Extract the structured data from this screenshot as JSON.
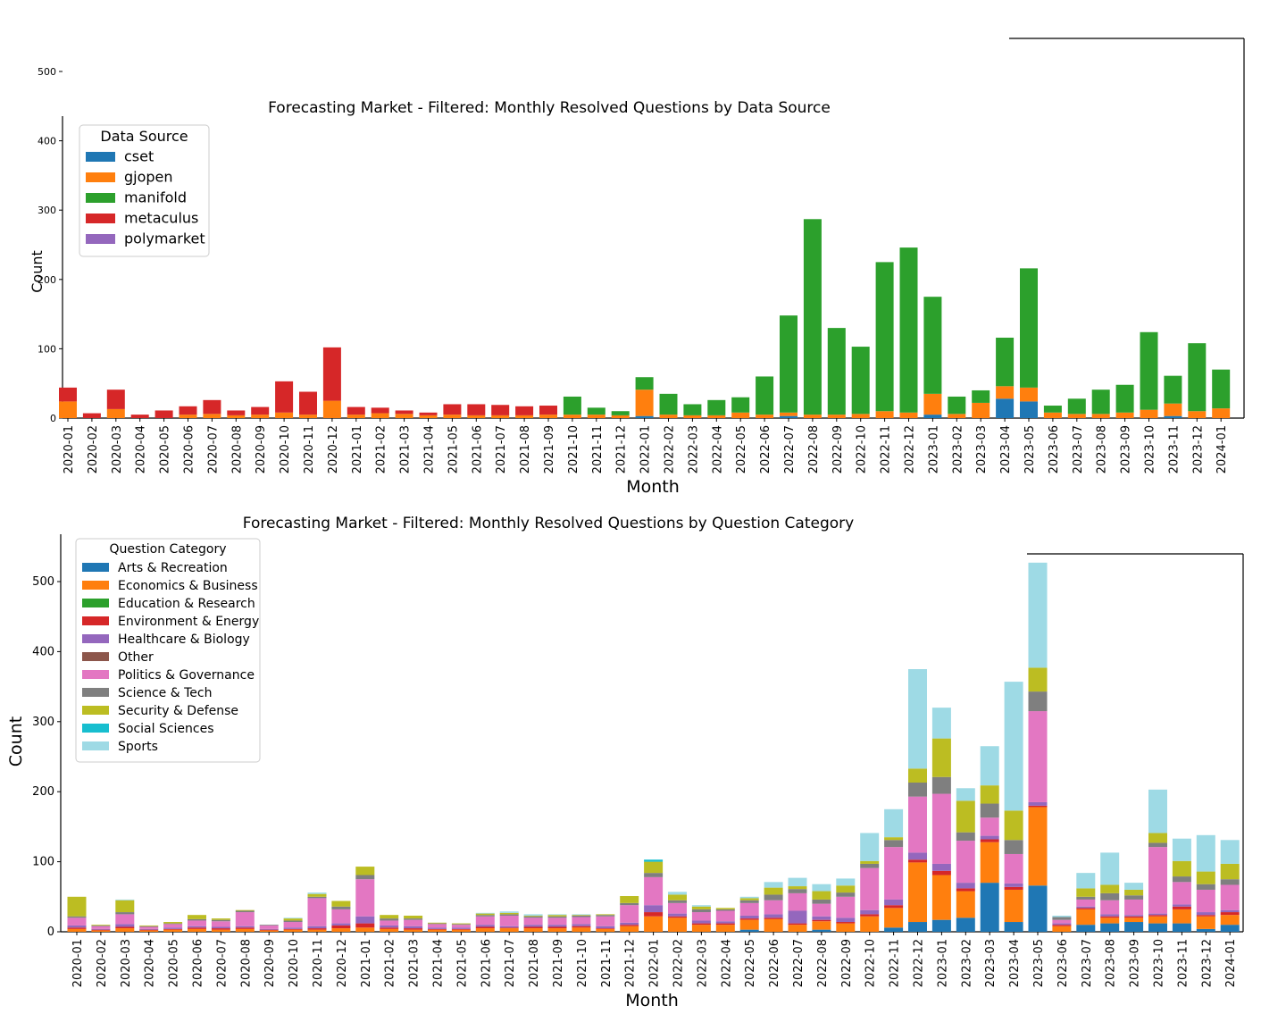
{
  "colors": {
    "source": {
      "cset": "#1f77b4",
      "gjopen": "#ff7f0e",
      "manifold": "#2ca02c",
      "metaculus": "#d62728",
      "polymarket": "#9467bd"
    },
    "category": {
      "Arts & Recreation": "#1f77b4",
      "Economics & Business": "#ff7f0e",
      "Education & Research": "#2ca02c",
      "Environment & Energy": "#d62728",
      "Healthcare & Biology": "#9467bd",
      "Other": "#8c564b",
      "Politics & Governance": "#e377c2",
      "Science & Tech": "#7f7f7f",
      "Security & Defense": "#bcbd22",
      "Social Sciences": "#17becf",
      "Sports": "#9edae5"
    }
  },
  "chart_data": [
    {
      "type": "bar",
      "stacked": true,
      "title": "Forecasting Market - Filtered: Monthly Resolved Questions by Data Source",
      "xlabel": "Month",
      "ylabel": "Count",
      "ylim": [
        0,
        540
      ],
      "yticks": [
        0,
        100,
        200,
        300,
        400,
        500
      ],
      "legend_title": "Data Source",
      "legend_position": "upper-left",
      "categories": [
        "2020-01",
        "2020-02",
        "2020-03",
        "2020-04",
        "2020-05",
        "2020-06",
        "2020-07",
        "2020-08",
        "2020-09",
        "2020-10",
        "2020-11",
        "2020-12",
        "2021-01",
        "2021-02",
        "2021-03",
        "2021-04",
        "2021-05",
        "2021-06",
        "2021-07",
        "2021-08",
        "2021-09",
        "2021-10",
        "2021-11",
        "2021-12",
        "2022-01",
        "2022-02",
        "2022-03",
        "2022-04",
        "2022-05",
        "2022-06",
        "2022-07",
        "2022-08",
        "2022-09",
        "2022-10",
        "2022-11",
        "2022-12",
        "2023-01",
        "2023-02",
        "2023-03",
        "2023-04",
        "2023-05",
        "2023-06",
        "2023-07",
        "2023-08",
        "2023-09",
        "2023-10",
        "2023-11",
        "2023-12",
        "2024-01"
      ],
      "series": [
        {
          "name": "cset",
          "values": [
            0,
            0,
            0,
            0,
            0,
            0,
            0,
            0,
            0,
            0,
            0,
            0,
            0,
            0,
            0,
            0,
            0,
            0,
            0,
            0,
            0,
            0,
            0,
            0,
            3,
            0,
            0,
            0,
            0,
            0,
            3,
            0,
            0,
            0,
            0,
            0,
            5,
            0,
            0,
            28,
            24,
            0,
            0,
            0,
            0,
            0,
            3,
            0,
            0
          ]
        },
        {
          "name": "gjopen",
          "values": [
            24,
            0,
            13,
            0,
            0,
            5,
            6,
            4,
            5,
            8,
            5,
            25,
            5,
            7,
            6,
            4,
            5,
            4,
            4,
            4,
            5,
            5,
            5,
            4,
            38,
            5,
            4,
            4,
            8,
            5,
            5,
            5,
            5,
            6,
            10,
            8,
            30,
            6,
            22,
            18,
            20,
            8,
            6,
            6,
            8,
            12,
            18,
            10,
            14
          ]
        },
        {
          "name": "manifold",
          "values": [
            0,
            0,
            0,
            0,
            0,
            0,
            0,
            0,
            0,
            0,
            0,
            0,
            0,
            0,
            0,
            0,
            0,
            0,
            0,
            0,
            0,
            26,
            10,
            6,
            18,
            30,
            16,
            22,
            22,
            55,
            140,
            282,
            125,
            97,
            215,
            238,
            140,
            25,
            18,
            70,
            172,
            10,
            22,
            35,
            40,
            112,
            40,
            98,
            56
          ]
        },
        {
          "name": "metaculus",
          "values": [
            20,
            7,
            28,
            5,
            11,
            12,
            20,
            7,
            11,
            45,
            33,
            77,
            11,
            8,
            5,
            4,
            15,
            16,
            15,
            13,
            13,
            0,
            0,
            0,
            0,
            0,
            0,
            0,
            0,
            0,
            0,
            0,
            0,
            0,
            0,
            0,
            0,
            0,
            0,
            0,
            0,
            0,
            0,
            0,
            0,
            0,
            0,
            0,
            0
          ]
        },
        {
          "name": "polymarket",
          "values": [
            0,
            0,
            0,
            0,
            0,
            0,
            0,
            0,
            0,
            0,
            0,
            0,
            0,
            0,
            0,
            0,
            0,
            0,
            0,
            0,
            0,
            0,
            0,
            0,
            0,
            0,
            0,
            0,
            0,
            0,
            0,
            0,
            0,
            0,
            0,
            0,
            0,
            0,
            0,
            0,
            0,
            0,
            0,
            0,
            0,
            0,
            0,
            0,
            0
          ]
        }
      ]
    },
    {
      "type": "bar",
      "stacked": true,
      "title": "Forecasting Market - Filtered: Monthly Resolved Questions by Question Category",
      "xlabel": "Month",
      "ylabel": "Count",
      "ylim": [
        0,
        560
      ],
      "yticks": [
        0,
        100,
        200,
        300,
        400,
        500
      ],
      "legend_title": "Question Category",
      "legend_position": "upper-left",
      "categories": [
        "2020-01",
        "2020-02",
        "2020-03",
        "2020-04",
        "2020-05",
        "2020-06",
        "2020-07",
        "2020-08",
        "2020-09",
        "2020-10",
        "2020-11",
        "2020-12",
        "2021-01",
        "2021-02",
        "2021-03",
        "2021-04",
        "2021-05",
        "2021-06",
        "2021-07",
        "2021-08",
        "2021-09",
        "2021-10",
        "2021-11",
        "2021-12",
        "2022-01",
        "2022-02",
        "2022-03",
        "2022-04",
        "2022-05",
        "2022-06",
        "2022-07",
        "2022-08",
        "2022-09",
        "2022-10",
        "2022-11",
        "2022-12",
        "2023-01",
        "2023-02",
        "2023-03",
        "2023-04",
        "2023-05",
        "2023-06",
        "2023-07",
        "2023-08",
        "2023-09",
        "2023-10",
        "2023-11",
        "2023-12",
        "2024-01"
      ],
      "series": [
        {
          "name": "Arts & Recreation",
          "values": [
            0,
            0,
            0,
            0,
            0,
            0,
            0,
            0,
            0,
            0,
            0,
            0,
            0,
            0,
            0,
            0,
            0,
            0,
            0,
            0,
            0,
            0,
            0,
            0,
            0,
            0,
            0,
            0,
            3,
            0,
            0,
            3,
            0,
            0,
            6,
            14,
            17,
            20,
            70,
            14,
            66,
            0,
            10,
            12,
            14,
            12,
            12,
            4,
            10
          ]
        },
        {
          "name": "Economics & Business",
          "values": [
            4,
            2,
            5,
            2,
            3,
            4,
            3,
            4,
            2,
            3,
            3,
            5,
            6,
            4,
            3,
            3,
            3,
            5,
            5,
            5,
            5,
            6,
            4,
            8,
            22,
            20,
            10,
            10,
            14,
            18,
            10,
            12,
            12,
            22,
            28,
            85,
            64,
            38,
            58,
            46,
            112,
            8,
            22,
            8,
            6,
            10,
            20,
            18,
            14
          ]
        },
        {
          "name": "Education & Research",
          "values": [
            0,
            0,
            0,
            0,
            0,
            0,
            0,
            0,
            0,
            0,
            0,
            0,
            0,
            0,
            0,
            0,
            0,
            0,
            0,
            0,
            0,
            0,
            0,
            0,
            0,
            0,
            0,
            0,
            0,
            0,
            0,
            0,
            0,
            0,
            0,
            0,
            0,
            0,
            0,
            0,
            0,
            0,
            0,
            0,
            0,
            0,
            0,
            0,
            0
          ]
        },
        {
          "name": "Environment & Energy",
          "values": [
            2,
            1,
            2,
            1,
            1,
            2,
            2,
            2,
            1,
            1,
            2,
            4,
            6,
            2,
            2,
            1,
            1,
            2,
            1,
            2,
            2,
            2,
            1,
            2,
            6,
            2,
            2,
            2,
            2,
            2,
            2,
            2,
            2,
            3,
            4,
            4,
            6,
            4,
            4,
            4,
            2,
            2,
            2,
            2,
            2,
            2,
            4,
            2,
            4
          ]
        },
        {
          "name": "Healthcare & Biology",
          "values": [
            3,
            1,
            4,
            1,
            2,
            2,
            2,
            2,
            1,
            2,
            3,
            3,
            10,
            3,
            3,
            2,
            2,
            3,
            2,
            3,
            3,
            3,
            3,
            3,
            10,
            4,
            4,
            3,
            4,
            5,
            18,
            5,
            6,
            6,
            8,
            10,
            10,
            8,
            5,
            5,
            5,
            2,
            2,
            3,
            2,
            2,
            3,
            4,
            3
          ]
        },
        {
          "name": "Other",
          "values": [
            0,
            0,
            0,
            0,
            0,
            0,
            0,
            0,
            0,
            0,
            0,
            0,
            0,
            0,
            0,
            0,
            0,
            0,
            0,
            0,
            0,
            0,
            0,
            0,
            0,
            0,
            0,
            0,
            0,
            0,
            0,
            0,
            0,
            0,
            0,
            0,
            0,
            0,
            0,
            0,
            0,
            0,
            0,
            0,
            0,
            0,
            0,
            0,
            0
          ]
        },
        {
          "name": "Politics & Governance",
          "values": [
            11,
            4,
            14,
            3,
            5,
            8,
            8,
            20,
            5,
            8,
            40,
            20,
            53,
            7,
            9,
            5,
            4,
            12,
            15,
            10,
            10,
            10,
            14,
            25,
            40,
            15,
            12,
            15,
            18,
            20,
            25,
            18,
            30,
            60,
            75,
            80,
            100,
            60,
            26,
            42,
            130,
            5,
            10,
            20,
            22,
            95,
            32,
            32,
            36
          ]
        },
        {
          "name": "Science & Tech",
          "values": [
            2,
            1,
            3,
            1,
            1,
            2,
            2,
            2,
            1,
            2,
            2,
            4,
            6,
            3,
            2,
            1,
            1,
            2,
            2,
            2,
            2,
            2,
            2,
            3,
            6,
            4,
            4,
            2,
            4,
            8,
            6,
            6,
            6,
            6,
            10,
            20,
            24,
            12,
            20,
            20,
            28,
            4,
            4,
            10,
            6,
            6,
            8,
            8,
            8
          ]
        },
        {
          "name": "Security & Defense",
          "values": [
            28,
            1,
            17,
            1,
            2,
            6,
            2,
            1,
            0,
            3,
            4,
            8,
            12,
            5,
            4,
            1,
            1,
            2,
            2,
            1,
            2,
            1,
            1,
            10,
            16,
            8,
            4,
            2,
            3,
            10,
            4,
            12,
            10,
            4,
            4,
            20,
            55,
            45,
            26,
            42,
            34,
            0,
            12,
            12,
            8,
            14,
            22,
            18,
            22
          ]
        },
        {
          "name": "Social Sciences",
          "values": [
            0,
            0,
            0,
            0,
            0,
            0,
            0,
            0,
            0,
            0,
            0,
            0,
            0,
            0,
            0,
            0,
            0,
            0,
            0,
            0,
            0,
            0,
            0,
            0,
            3,
            0,
            0,
            0,
            0,
            0,
            0,
            0,
            0,
            0,
            0,
            0,
            0,
            0,
            0,
            0,
            0,
            0,
            0,
            0,
            0,
            0,
            0,
            0,
            0
          ]
        },
        {
          "name": "Sports",
          "values": [
            0,
            0,
            1,
            0,
            0,
            0,
            0,
            0,
            0,
            1,
            2,
            0,
            0,
            0,
            0,
            0,
            0,
            1,
            2,
            2,
            1,
            1,
            0,
            0,
            0,
            4,
            2,
            0,
            2,
            8,
            12,
            10,
            10,
            40,
            40,
            142,
            44,
            18,
            56,
            184,
            150,
            2,
            22,
            46,
            10,
            62,
            32,
            52,
            34
          ]
        }
      ]
    }
  ]
}
